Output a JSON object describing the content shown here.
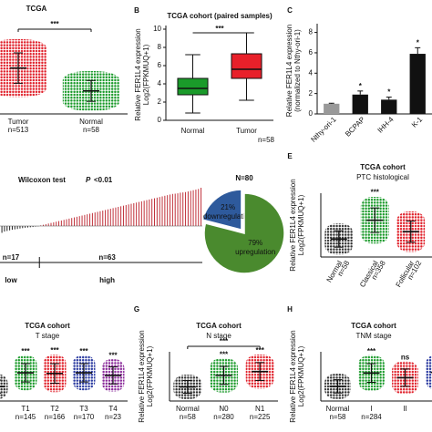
{
  "panel_labels": [
    "B",
    "C",
    "E",
    "G",
    "H"
  ],
  "chart_data": [
    {
      "type": "dotplot",
      "title": "TCGA",
      "categories": [
        "Tumor",
        "Normal"
      ],
      "n_labels": [
        "n=513",
        "n=58"
      ],
      "means": [
        5.6,
        3.2
      ],
      "sds": [
        1.6,
        1.1
      ],
      "colors": [
        "#e0202a",
        "#1a9a2a"
      ],
      "bracket": "***"
    },
    {
      "type": "box",
      "title": "TCGA cohort (paired samples)",
      "ylabel": [
        "Relative FER1L4 expression",
        "Log2(FPKMUQ+1)"
      ],
      "ylim": [
        0,
        10
      ],
      "yticks": [
        0,
        2,
        4,
        6,
        8,
        10
      ],
      "categories": [
        "Normal",
        "Tumor"
      ],
      "stats": [
        [
          0.8,
          2.8,
          3.5,
          4.6,
          7.2
        ],
        [
          2.2,
          4.6,
          5.6,
          7.3,
          9.6
        ]
      ],
      "colors": [
        "#1a9a2a",
        "#e8202a"
      ],
      "bracket": "***",
      "n_label": "n=58"
    },
    {
      "type": "bar",
      "ylabel": [
        "Relative FER1L4 expression",
        "(normalized to Nthy-ori-1)"
      ],
      "ylim": [
        0,
        8.5
      ],
      "yticks": [
        0,
        2,
        4,
        6,
        8
      ],
      "categories": [
        "Nthy-ori-1",
        "BCPAP",
        "IHH-4",
        "K-1"
      ],
      "values": [
        1,
        1.9,
        1.4,
        5.9
      ],
      "errors": [
        0.05,
        0.35,
        0.25,
        0.6
      ],
      "colors": [
        "#999999",
        "#111111",
        "#111111",
        "#111111"
      ],
      "significance": [
        null,
        "*",
        "*",
        "*"
      ]
    },
    {
      "type": "waterfall",
      "title": "Wilcoxon test",
      "p_symbol": "P",
      "p_text": "<0.01",
      "color": "#c0303a",
      "neg_color": "#222222",
      "values": [
        -0.95,
        -0.7,
        -0.55,
        -0.45,
        -0.4,
        -0.35,
        -0.3,
        -0.27,
        -0.24,
        -0.2,
        -0.17,
        -0.14,
        -0.12,
        -0.1,
        -0.08,
        -0.05,
        -0.03,
        0.05,
        0.1,
        0.15,
        0.2,
        0.25,
        0.3,
        0.35,
        0.4,
        0.45,
        0.5,
        0.55,
        0.6,
        0.65,
        0.7,
        0.75,
        0.8,
        0.85,
        0.9,
        0.95,
        1.0,
        1.05,
        1.1,
        1.15,
        1.2,
        1.25,
        1.3,
        1.35,
        1.4,
        1.45,
        1.5,
        1.55,
        1.6,
        1.65,
        1.7,
        1.75,
        1.8,
        1.85,
        1.9,
        1.95,
        2.0,
        2.05,
        2.1,
        2.15,
        2.2,
        2.25,
        2.3,
        2.35,
        2.4,
        2.45,
        2.5,
        2.55,
        2.6,
        2.62,
        2.65,
        2.7,
        2.72,
        2.75,
        2.8,
        2.85,
        2.9,
        2.95,
        3.0,
        3.1
      ],
      "groups": [
        {
          "n": "n=17",
          "label": "low"
        },
        {
          "n": "n=63",
          "label": "high"
        }
      ]
    },
    {
      "type": "pie",
      "title": "N=80",
      "values": [
        21,
        79
      ],
      "value_labels": [
        "21%",
        "79%"
      ],
      "names": [
        "downregulation",
        "upregulation"
      ],
      "colors": [
        "#2e5a9c",
        "#4a8a2e"
      ]
    },
    {
      "type": "dotplot",
      "title": "TCGA cohort",
      "subtitle": "PTC histological",
      "ylabel": [
        "Relative FER1L4 expression",
        "Log2(FPKMUQ+1)"
      ],
      "categories": [
        "Normal",
        "Classical",
        "Follicular",
        "Tall C"
      ],
      "n_labels": [
        "n=58",
        "n=358",
        "n=102",
        null
      ],
      "means": [
        3.4,
        5.7,
        4.3,
        5.2
      ],
      "sds": [
        1.0,
        1.5,
        1.3,
        1.2
      ],
      "colors": [
        "#333333",
        "#1a9a2a",
        "#e0202a",
        "#2a3aa0"
      ],
      "significance": [
        null,
        "***",
        null,
        null
      ]
    },
    {
      "type": "dotplot",
      "title": "TCGA cohort",
      "subtitle": "T stage",
      "categories": [
        null,
        "T1",
        "T2",
        "T3",
        "T4"
      ],
      "n_labels": [
        null,
        "n=145",
        "n=166",
        "n=170",
        "n=23"
      ],
      "means": [
        3.5,
        5.6,
        5.5,
        5.6,
        5.2
      ],
      "sds": [
        1.0,
        1.4,
        1.5,
        1.4,
        1.3
      ],
      "colors": [
        "#333333",
        "#1a9a2a",
        "#e0202a",
        "#2a3aa0",
        "#8a2a9a"
      ],
      "significance": [
        null,
        "***",
        "***",
        "***",
        "***"
      ]
    },
    {
      "type": "dotplot",
      "title": "TCGA cohort",
      "subtitle": "N stage",
      "ylabel": [
        "Relative FER1L4 expression",
        "Log2(FPKMUQ+1)"
      ],
      "categories": [
        "Normal",
        "N0",
        "N1"
      ],
      "n_labels": [
        "n=58",
        "n=280",
        "n=225"
      ],
      "means": [
        3.5,
        5.3,
        5.9
      ],
      "sds": [
        1.0,
        1.4,
        1.4
      ],
      "colors": [
        "#333333",
        "#1a9a2a",
        "#e0202a"
      ],
      "significance": [
        null,
        "***",
        "***"
      ],
      "bracket": "***"
    },
    {
      "type": "dotplot",
      "title": "TCGA cohort",
      "subtitle": "TNM stage",
      "ylabel": [
        "Relative FER1L4 expression",
        "Log2(FPKMUQ+1)"
      ],
      "categories": [
        "Normal",
        "I",
        "II",
        "III"
      ],
      "n_labels": [
        "n=58",
        "n=284",
        null,
        null
      ],
      "means": [
        3.5,
        5.5,
        4.8,
        5.6
      ],
      "sds": [
        1.0,
        1.4,
        1.3,
        1.4
      ],
      "colors": [
        "#333333",
        "#1a9a2a",
        "#e0202a",
        "#2a3aa0"
      ],
      "significance": [
        null,
        "***",
        "ns",
        "*"
      ]
    }
  ]
}
